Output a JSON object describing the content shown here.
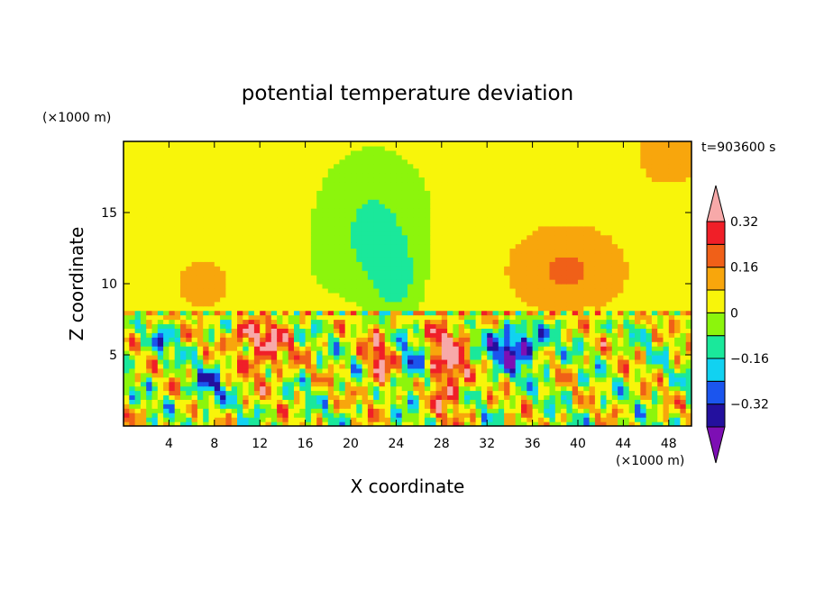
{
  "chart_data": {
    "type": "heatmap",
    "title": "potential temperature deviation",
    "time_label": "t=903600 s",
    "xlabel": "X coordinate",
    "ylabel": "Z coordinate",
    "x_unit": "(×1000 m)",
    "y_unit": "(×1000 m)",
    "xlim": [
      0,
      50
    ],
    "ylim": [
      0,
      20
    ],
    "xticks": [
      4,
      8,
      12,
      16,
      20,
      24,
      28,
      32,
      36,
      40,
      44,
      48
    ],
    "yticks": [
      5,
      10,
      15
    ],
    "colorbar": {
      "levels": [
        -0.4,
        -0.32,
        -0.24,
        -0.16,
        -0.08,
        0,
        0.08,
        0.16,
        0.24,
        0.32,
        0.4
      ],
      "tick_labels": [
        "0.32",
        "0.16",
        "0",
        "−0.16",
        "−0.32"
      ],
      "colors": [
        "#7d0fb4",
        "#23109e",
        "#1b55ee",
        "#11d2f1",
        "#1ae89b",
        "#8cf50c",
        "#f8f50a",
        "#f8a60c",
        "#f06018",
        "#f01f28",
        "#f7a9a9"
      ],
      "extend": "both"
    }
  }
}
